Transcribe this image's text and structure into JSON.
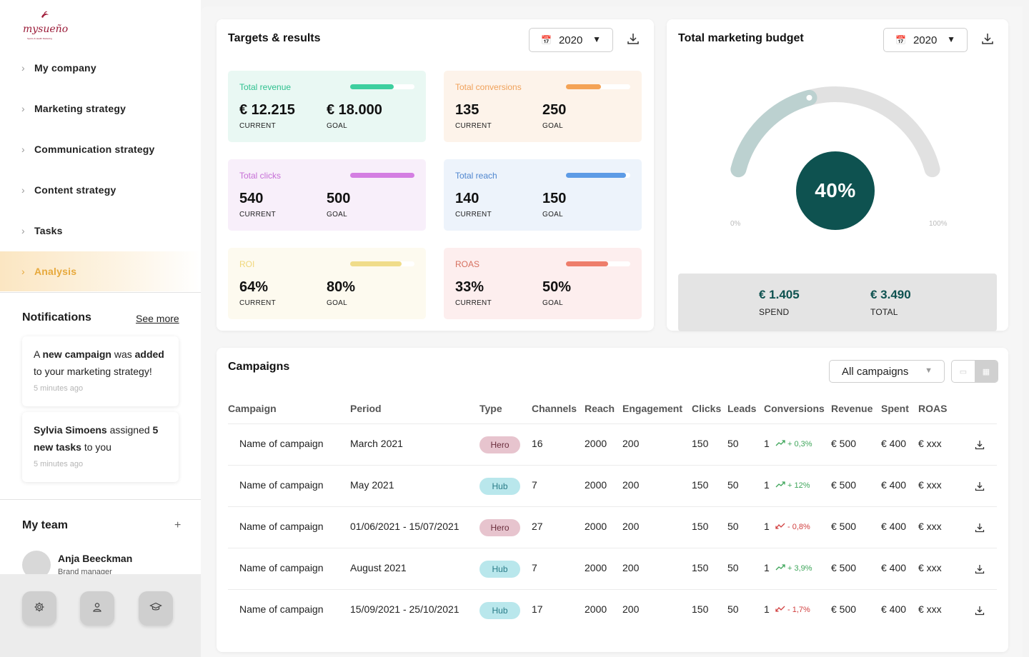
{
  "brand": {
    "name": "mysueño",
    "tagline": "Sports & Health Marketing"
  },
  "sidebar": {
    "items": [
      {
        "label": "My company",
        "active": false
      },
      {
        "label": "Marketing strategy",
        "active": false
      },
      {
        "label": "Communication strategy",
        "active": false
      },
      {
        "label": "Content strategy",
        "active": false
      },
      {
        "label": "Tasks",
        "active": false
      },
      {
        "label": "Analysis",
        "active": true
      }
    ]
  },
  "notifications": {
    "title": "Notifications",
    "see_more": "See more",
    "items": [
      {
        "p1": "A ",
        "b1": "new campaign",
        "p2": " was ",
        "b2": "added",
        "p3": " to your marketing strategy!",
        "time": "5 minutes ago"
      },
      {
        "b1": "Sylvia Simoens",
        "p1": " assigned ",
        "b2": "5 new tasks",
        "p2": " to you",
        "time": "5 minutes ago"
      }
    ]
  },
  "team": {
    "title": "My team",
    "add": "+",
    "members": [
      {
        "name": "Anja Beeckman",
        "role": "Brand manager"
      }
    ]
  },
  "bottom_icons": [
    "settings-icon",
    "user-icon",
    "graduation-cap-icon"
  ],
  "targets": {
    "title": "Targets & results",
    "year": "2020",
    "metrics": [
      {
        "label": "Total revenue",
        "current": "€ 12.215",
        "goal": "€ 18.000",
        "current_label": "CURRENT",
        "goal_label": "GOAL",
        "progress": 0.68,
        "color": "#3dcf9f",
        "bg": "#e9f8f3",
        "label_color": "#2fc08f"
      },
      {
        "label": "Total conversions",
        "current": "135",
        "goal": "250",
        "current_label": "CURRENT",
        "goal_label": "GOAL",
        "progress": 0.54,
        "color": "#f4a356",
        "bg": "#fdf3ea",
        "label_color": "#f0a15a"
      },
      {
        "label": "Total clicks",
        "current": "540",
        "goal": "500",
        "current_label": "CURRENT",
        "goal_label": "GOAL",
        "progress": 1.0,
        "color": "#d47ee2",
        "bg": "#f8effa",
        "label_color": "#c66fd6"
      },
      {
        "label": "Total reach",
        "current": "140",
        "goal": "150",
        "current_label": "CURRENT",
        "goal_label": "GOAL",
        "progress": 0.93,
        "color": "#5d9be6",
        "bg": "#edf3fb",
        "label_color": "#4f86cf"
      },
      {
        "label": "ROI",
        "current": "64%",
        "goal": "80%",
        "current_label": "CURRENT",
        "goal_label": "GOAL",
        "progress": 0.8,
        "color": "#f0dc8a",
        "bg": "#fdfaef",
        "label_color": "#f0d77a"
      },
      {
        "label": "ROAS",
        "current": "33%",
        "goal": "50%",
        "current_label": "CURRENT",
        "goal_label": "GOAL",
        "progress": 0.66,
        "color": "#ee7d6b",
        "bg": "#fdeeee",
        "label_color": "#d6705f"
      }
    ]
  },
  "budget": {
    "title": "Total marketing budget",
    "year": "2020",
    "percent": "40%",
    "progress": 0.4,
    "min_label": "0%",
    "max_label": "100%",
    "spend": "€ 1.405",
    "spend_label": "SPEND",
    "total": "€ 3.490",
    "total_label": "TOTAL",
    "colors": {
      "track": "#e1e1e1",
      "fill": "#bcd1d0",
      "center": "#0e5250"
    }
  },
  "campaigns": {
    "title": "Campaigns",
    "filter": "All campaigns",
    "columns": [
      "Campaign",
      "Period",
      "Type",
      "Channels",
      "Reach",
      "Engagement",
      "Clicks",
      "Leads",
      "Conversions",
      "Revenue",
      "Spent",
      "ROAS"
    ],
    "rows": [
      {
        "name": "Name of campaign",
        "period": "March 2021",
        "type": "Hero",
        "channels": "16",
        "reach": "2000",
        "engagement": "200",
        "clicks": "150",
        "leads": "50",
        "conversions": "1",
        "trend": "+ 0,3%",
        "trend_dir": "up",
        "revenue": "€ 500",
        "spent": "€ 400",
        "roas": "€ xxx"
      },
      {
        "name": "Name of campaign",
        "period": "May 2021",
        "type": "Hub",
        "channels": "7",
        "reach": "2000",
        "engagement": "200",
        "clicks": "150",
        "leads": "50",
        "conversions": "1",
        "trend": "+ 12%",
        "trend_dir": "up",
        "revenue": "€ 500",
        "spent": "€ 400",
        "roas": "€ xxx"
      },
      {
        "name": "Name of campaign",
        "period": "01/06/2021 - 15/07/2021",
        "type": "Hero",
        "channels": "27",
        "reach": "2000",
        "engagement": "200",
        "clicks": "150",
        "leads": "50",
        "conversions": "1",
        "trend": "- 0,8%",
        "trend_dir": "down",
        "revenue": "€ 500",
        "spent": "€ 400",
        "roas": "€ xxx"
      },
      {
        "name": "Name of campaign",
        "period": "August 2021",
        "type": "Hub",
        "channels": "7",
        "reach": "2000",
        "engagement": "200",
        "clicks": "150",
        "leads": "50",
        "conversions": "1",
        "trend": "+ 3,9%",
        "trend_dir": "up",
        "revenue": "€ 500",
        "spent": "€ 400",
        "roas": "€ xxx"
      },
      {
        "name": "Name of campaign",
        "period": "15/09/2021 - 25/10/2021",
        "type": "Hub",
        "channels": "17",
        "reach": "2000",
        "engagement": "200",
        "clicks": "150",
        "leads": "50",
        "conversions": "1",
        "trend": "- 1,7%",
        "trend_dir": "down",
        "revenue": "€ 500",
        "spent": "€ 400",
        "roas": "€ xxx"
      }
    ]
  }
}
